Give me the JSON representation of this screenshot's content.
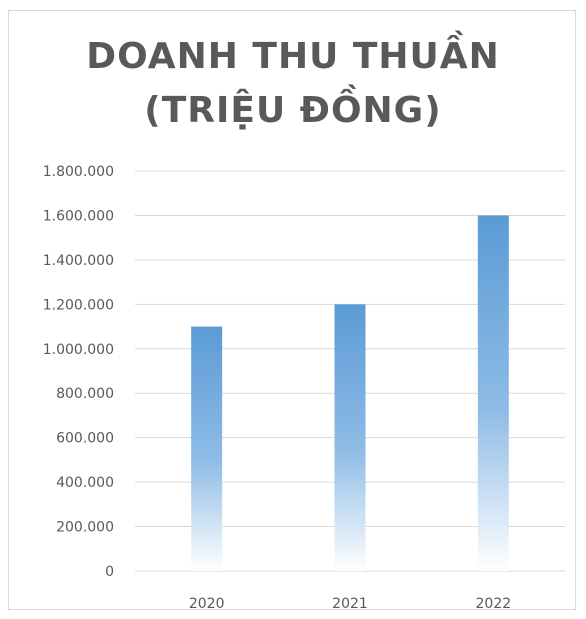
{
  "chart_data": {
    "type": "bar",
    "title": [
      "DOANH THU THUẦN",
      "(TRIỆU ĐỒNG)"
    ],
    "categories": [
      "2020",
      "2021",
      "2022"
    ],
    "values": [
      1100000,
      1200000,
      1600000
    ],
    "ylim": [
      0,
      1800000
    ],
    "yticks": [
      "0",
      "200.000",
      "400.000",
      "600.000",
      "800.000",
      "1.000.000",
      "1.200.000",
      "1.400.000",
      "1.600.000",
      "1.800.000"
    ],
    "ytick_step": 200000,
    "grid": true,
    "bar_color": "#5b9bd5",
    "bar_fill": "gradient top-to-bottom fading to white",
    "grid_color": "#d9d9d9"
  }
}
